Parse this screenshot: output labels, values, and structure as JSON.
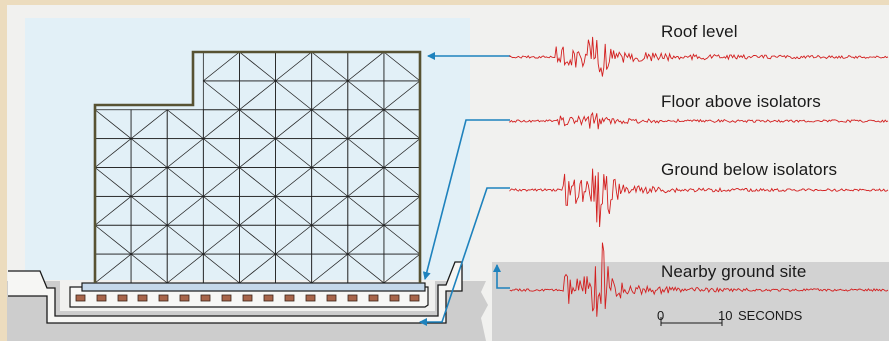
{
  "traces": [
    {
      "label": "Roof level",
      "amplitude": 22,
      "onset": 0.12,
      "decay": 0.55,
      "spike": 1.0
    },
    {
      "label": "Floor above isolators",
      "amplitude": 9,
      "onset": 0.12,
      "decay": 0.4,
      "spike": 0.7
    },
    {
      "label": "Ground below isolators",
      "amplitude": 30,
      "onset": 0.14,
      "decay": 0.35,
      "spike": 1.2
    },
    {
      "label": "Nearby ground site",
      "amplitude": 32,
      "onset": 0.14,
      "decay": 0.38,
      "spike": 1.2
    }
  ],
  "scale": {
    "zero": "0",
    "ten": "10",
    "unit": "SECONDS"
  },
  "colors": {
    "frame": "#f1f1ef",
    "sky": "#e2f0f7",
    "ground": "#cfcfcf",
    "building": "#575232",
    "grid": "#222222",
    "trace": "#d31f1f",
    "arrow": "#1e82bd",
    "isolator": "#a8654a",
    "baseplate": "#c5d8ea"
  }
}
